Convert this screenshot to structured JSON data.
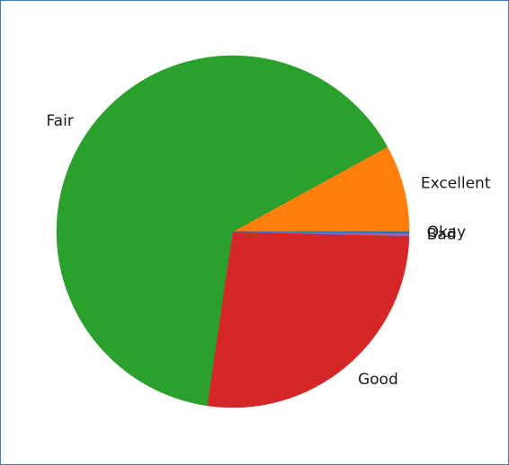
{
  "chart_data": {
    "type": "pie",
    "title": "",
    "start_angle_deg": 0,
    "direction": "counterclockwise",
    "legend": "none",
    "slices": [
      {
        "label": "Excellent",
        "value": 8.0,
        "color": "#ff7f0e"
      },
      {
        "label": "Fair",
        "value": 64.7,
        "color": "#2ca02c"
      },
      {
        "label": "Good",
        "value": 26.9,
        "color": "#d62728"
      },
      {
        "label": "Bad",
        "value": 0.25,
        "color": "#9467bd"
      },
      {
        "label": "Okay",
        "value": 0.15,
        "color": "#1f77b4"
      }
    ]
  }
}
